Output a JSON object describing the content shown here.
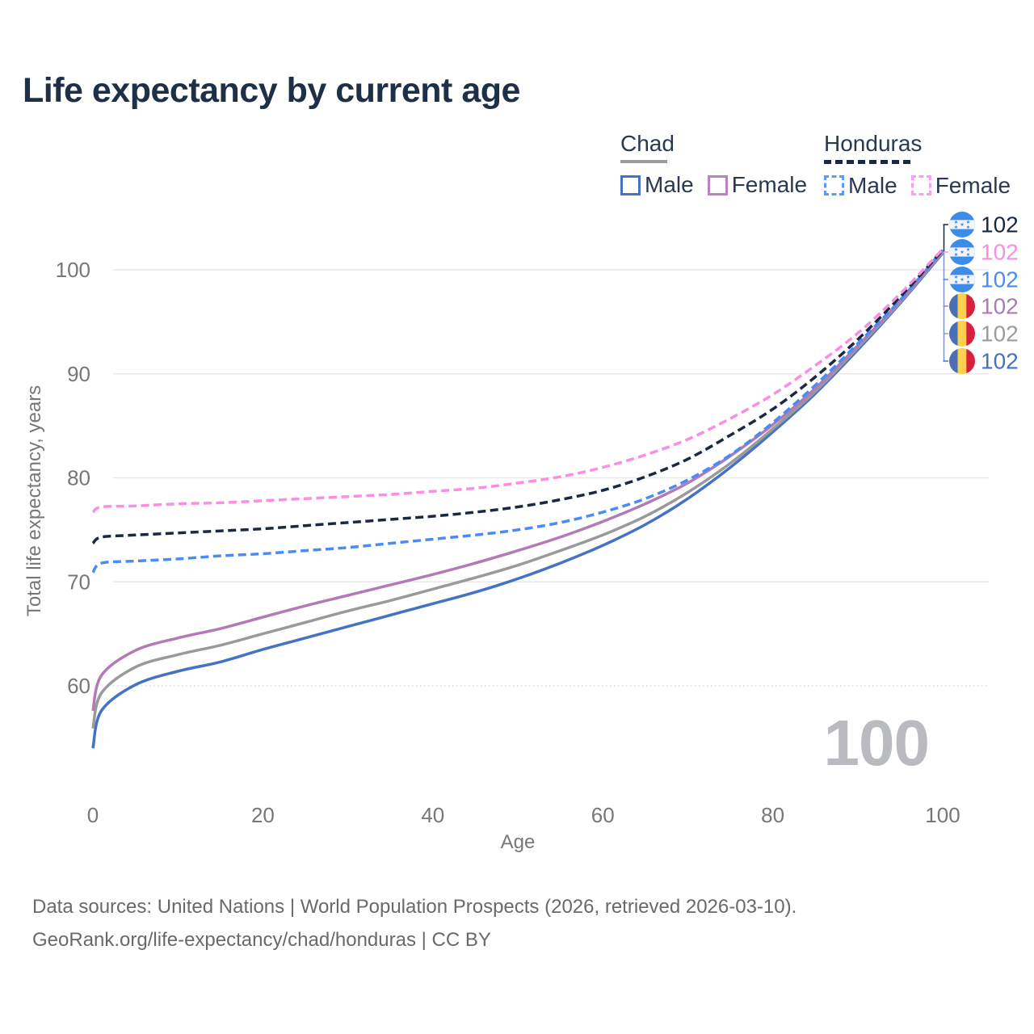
{
  "title": "Life expectancy by current age",
  "legend": {
    "groups": [
      {
        "name": "Chad",
        "line_style": "solid",
        "line_color": "#9a9a9a",
        "items": [
          {
            "label": "Male",
            "color": "#4472c4",
            "dashed": false
          },
          {
            "label": "Female",
            "color": "#bb82c2",
            "dashed": false
          }
        ]
      },
      {
        "name": "Honduras",
        "line_style": "dashed",
        "line_color": "#1b2940",
        "items": [
          {
            "label": "Male",
            "color": "#5b9bf8",
            "dashed": true
          },
          {
            "label": "Female",
            "color": "#fc9df2",
            "dashed": true
          }
        ]
      }
    ]
  },
  "watermark": "100",
  "footer": {
    "line1": "Data sources: United Nations | World Population Prospects (2026, retrieved 2026-03-10).",
    "line2": "GeoRank.org/life-expectancy/chad/honduras | CC BY"
  },
  "chart_data": {
    "type": "line",
    "title": "Life expectancy by current age",
    "xlabel": "Age",
    "ylabel": "Total life expectancy, years",
    "x_ticks": [
      0,
      20,
      40,
      60,
      80,
      100
    ],
    "y_ticks": [
      60,
      70,
      80,
      90,
      100
    ],
    "xlim": [
      0,
      100
    ],
    "ylim": [
      52,
      104
    ],
    "grid": "horizontal",
    "x": [
      0,
      1,
      5,
      10,
      15,
      20,
      25,
      30,
      35,
      40,
      45,
      50,
      55,
      60,
      65,
      70,
      75,
      80,
      85,
      90,
      95,
      100
    ],
    "series": [
      {
        "id": "chad-male",
        "name": "Chad Male",
        "color": "#4472c4",
        "dash": false,
        "values": [
          54.0,
          57.6,
          60.1,
          61.4,
          62.3,
          63.5,
          64.6,
          65.7,
          66.8,
          67.9,
          69.0,
          70.3,
          71.8,
          73.5,
          75.5,
          78.0,
          81.0,
          84.4,
          88.1,
          92.3,
          96.8,
          101.6
        ]
      },
      {
        "id": "chad-all",
        "name": "Chad Both sexes",
        "color": "#9a9a9a",
        "dash": false,
        "values": [
          55.9,
          59.3,
          61.8,
          63.0,
          63.9,
          65.0,
          66.1,
          67.2,
          68.2,
          69.3,
          70.4,
          71.6,
          73.0,
          74.5,
          76.3,
          78.6,
          81.4,
          84.7,
          88.3,
          92.5,
          96.9,
          101.7
        ]
      },
      {
        "id": "chad-female",
        "name": "Chad Female",
        "color": "#b27ab7",
        "dash": false,
        "values": [
          57.6,
          61.0,
          63.4,
          64.6,
          65.5,
          66.6,
          67.7,
          68.7,
          69.7,
          70.7,
          71.8,
          73.0,
          74.3,
          75.8,
          77.5,
          79.5,
          82.1,
          85.1,
          88.6,
          92.7,
          97.0,
          101.8
        ]
      },
      {
        "id": "honduras-male",
        "name": "Honduras Male",
        "color": "#4a8cf5",
        "dash": true,
        "values": [
          70.9,
          71.8,
          72.0,
          72.2,
          72.5,
          72.7,
          73.0,
          73.3,
          73.7,
          74.1,
          74.5,
          75.0,
          75.7,
          76.7,
          78.0,
          79.8,
          82.2,
          85.3,
          88.9,
          92.9,
          97.1,
          101.9
        ]
      },
      {
        "id": "honduras-all",
        "name": "Honduras Both sexes",
        "color": "#1b2940",
        "dash": true,
        "values": [
          73.7,
          74.3,
          74.5,
          74.7,
          74.9,
          75.1,
          75.4,
          75.7,
          76.0,
          76.3,
          76.7,
          77.2,
          77.9,
          78.8,
          80.1,
          81.8,
          84.1,
          86.6,
          89.7,
          93.3,
          97.4,
          101.9
        ]
      },
      {
        "id": "honduras-female",
        "name": "Honduras Female",
        "color": "#f98ee3",
        "dash": true,
        "values": [
          76.7,
          77.2,
          77.3,
          77.5,
          77.6,
          77.8,
          78.0,
          78.2,
          78.4,
          78.7,
          79.0,
          79.5,
          80.1,
          81.0,
          82.2,
          83.7,
          85.7,
          88.0,
          90.8,
          93.9,
          97.7,
          102.0
        ]
      }
    ],
    "end_labels": [
      {
        "text": "102",
        "series": "honduras-all",
        "flag": "honduras",
        "color": "#1b2940"
      },
      {
        "text": "102",
        "series": "honduras-female",
        "flag": "honduras",
        "color": "#f98ee3"
      },
      {
        "text": "102",
        "series": "honduras-male",
        "flag": "honduras",
        "color": "#4a8cf5"
      },
      {
        "text": "102",
        "series": "chad-female",
        "flag": "chad",
        "color": "#a87cb5"
      },
      {
        "text": "102",
        "series": "chad-all",
        "flag": "chad",
        "color": "#9a9ca1"
      },
      {
        "text": "102",
        "series": "chad-male",
        "flag": "chad",
        "color": "#4472c4"
      }
    ],
    "flag_colors": {
      "honduras": {
        "band": "#3d8ce8",
        "field": "#f2f4f7",
        "star": "#3d8ce8"
      },
      "chad": {
        "blue": "#4a70b4",
        "yellow": "#fcd24c",
        "red": "#d8203d"
      }
    }
  }
}
